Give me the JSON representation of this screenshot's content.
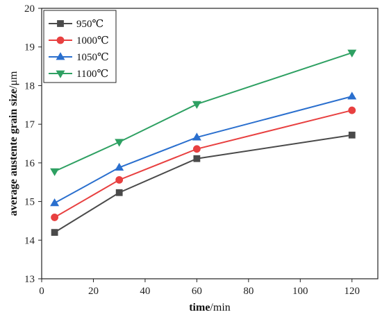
{
  "chart_data": {
    "type": "line",
    "title": "",
    "xlabel_bold": "time",
    "xlabel_unit": "/min",
    "ylabel_bold": "average austente grain size",
    "ylabel_unit": "/μm",
    "xlim": [
      0,
      130
    ],
    "ylim": [
      13,
      20
    ],
    "x_ticks": [
      0,
      20,
      40,
      60,
      80,
      100,
      120
    ],
    "y_ticks": [
      13,
      14,
      15,
      16,
      17,
      18,
      19,
      20
    ],
    "legend_position": "top-left",
    "grid": false,
    "series": [
      {
        "name": "950℃",
        "color": "#4a4a4a",
        "marker": "square",
        "x": [
          5,
          30,
          60,
          120
        ],
        "y": [
          14.2,
          15.23,
          16.11,
          16.72
        ]
      },
      {
        "name": "1000℃",
        "color": "#e84040",
        "marker": "circle",
        "x": [
          5,
          30,
          60,
          120
        ],
        "y": [
          14.59,
          15.56,
          16.36,
          17.36
        ]
      },
      {
        "name": "1050℃",
        "color": "#2a6fce",
        "marker": "triangle-up",
        "x": [
          5,
          30,
          60,
          120
        ],
        "y": [
          14.96,
          15.88,
          16.66,
          17.72
        ]
      },
      {
        "name": "1100℃",
        "color": "#2ea062",
        "marker": "triangle-down",
        "x": [
          5,
          30,
          60,
          120
        ],
        "y": [
          15.78,
          16.54,
          17.52,
          18.85
        ]
      }
    ]
  }
}
